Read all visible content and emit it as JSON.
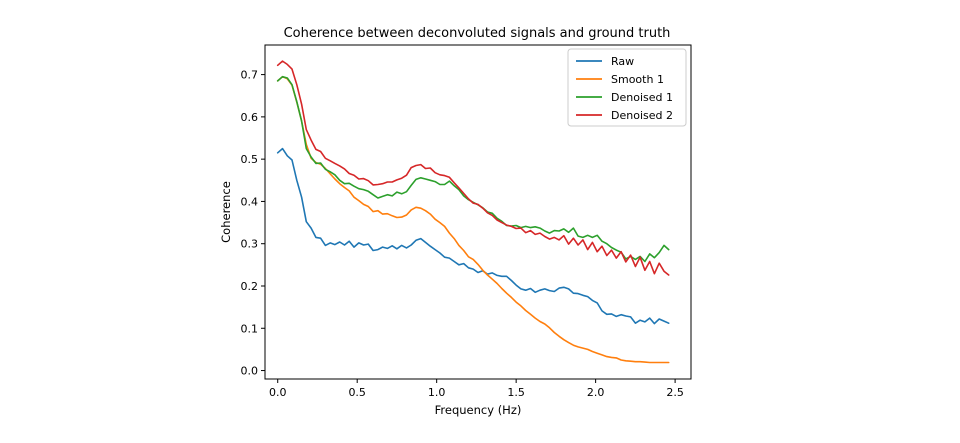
{
  "chart_data": {
    "type": "line",
    "title": "Coherence between deconvoluted signals and ground truth",
    "xlabel": "Frequency (Hz)",
    "ylabel": "Coherence",
    "xlim": [
      -0.08,
      2.6
    ],
    "ylim": [
      -0.02,
      0.77
    ],
    "xticks": [
      0.0,
      0.5,
      1.0,
      1.5,
      2.0,
      2.5
    ],
    "xtick_labels": [
      "0.0",
      "0.5",
      "1.0",
      "1.5",
      "2.0",
      "2.5"
    ],
    "yticks": [
      0.0,
      0.1,
      0.2,
      0.3,
      0.4,
      0.5,
      0.6,
      0.7
    ],
    "ytick_labels": [
      "0.0",
      "0.1",
      "0.2",
      "0.3",
      "0.4",
      "0.5",
      "0.6",
      "0.7"
    ],
    "grid": false,
    "legend_position": "upper right",
    "x": [
      0.0,
      0.03,
      0.06,
      0.09,
      0.12,
      0.15,
      0.18,
      0.21,
      0.24,
      0.27,
      0.3,
      0.33,
      0.36,
      0.39,
      0.42,
      0.45,
      0.48,
      0.51,
      0.54,
      0.57,
      0.6,
      0.63,
      0.66,
      0.69,
      0.72,
      0.75,
      0.78,
      0.81,
      0.84,
      0.87,
      0.9,
      0.93,
      0.96,
      0.99,
      1.02,
      1.05,
      1.08,
      1.11,
      1.14,
      1.17,
      1.2,
      1.23,
      1.26,
      1.29,
      1.32,
      1.35,
      1.38,
      1.41,
      1.44,
      1.47,
      1.5,
      1.53,
      1.56,
      1.59,
      1.62,
      1.65,
      1.68,
      1.71,
      1.74,
      1.77,
      1.8,
      1.83,
      1.86,
      1.89,
      1.92,
      1.95,
      1.98,
      2.01,
      2.04,
      2.07,
      2.1,
      2.13,
      2.16,
      2.19,
      2.22,
      2.25,
      2.28,
      2.31,
      2.34,
      2.37,
      2.4,
      2.43,
      2.46
    ],
    "series": [
      {
        "name": "Raw",
        "color": "#1f77b4",
        "values": [
          0.515,
          0.525,
          0.508,
          0.498,
          0.45,
          0.41,
          0.352,
          0.337,
          0.315,
          0.313,
          0.296,
          0.302,
          0.298,
          0.304,
          0.297,
          0.306,
          0.292,
          0.302,
          0.297,
          0.299,
          0.284,
          0.286,
          0.292,
          0.289,
          0.295,
          0.288,
          0.296,
          0.29,
          0.297,
          0.308,
          0.312,
          0.303,
          0.294,
          0.286,
          0.278,
          0.268,
          0.266,
          0.258,
          0.25,
          0.253,
          0.243,
          0.24,
          0.232,
          0.236,
          0.228,
          0.231,
          0.225,
          0.223,
          0.223,
          0.213,
          0.202,
          0.193,
          0.19,
          0.194,
          0.185,
          0.19,
          0.193,
          0.189,
          0.187,
          0.195,
          0.197,
          0.193,
          0.183,
          0.182,
          0.178,
          0.175,
          0.166,
          0.16,
          0.141,
          0.133,
          0.134,
          0.128,
          0.132,
          0.129,
          0.127,
          0.112,
          0.119,
          0.115,
          0.124,
          0.111,
          0.122,
          0.117,
          0.112
        ]
      },
      {
        "name": "Smooth 1",
        "color": "#ff7f0e",
        "values": [
          0.685,
          0.695,
          0.69,
          0.675,
          0.635,
          0.59,
          0.535,
          0.502,
          0.492,
          0.488,
          0.478,
          0.465,
          0.453,
          0.442,
          0.433,
          0.425,
          0.41,
          0.402,
          0.393,
          0.388,
          0.376,
          0.378,
          0.37,
          0.371,
          0.366,
          0.362,
          0.363,
          0.368,
          0.38,
          0.386,
          0.384,
          0.378,
          0.37,
          0.358,
          0.35,
          0.341,
          0.325,
          0.312,
          0.296,
          0.284,
          0.269,
          0.263,
          0.251,
          0.237,
          0.226,
          0.216,
          0.206,
          0.194,
          0.183,
          0.173,
          0.162,
          0.153,
          0.142,
          0.133,
          0.124,
          0.116,
          0.11,
          0.101,
          0.09,
          0.081,
          0.073,
          0.066,
          0.06,
          0.056,
          0.053,
          0.05,
          0.045,
          0.041,
          0.037,
          0.033,
          0.031,
          0.03,
          0.025,
          0.023,
          0.022,
          0.021,
          0.021,
          0.02,
          0.019,
          0.019,
          0.019,
          0.019,
          0.019
        ]
      },
      {
        "name": "Denoised 1",
        "color": "#2ca02c",
        "values": [
          0.685,
          0.695,
          0.692,
          0.676,
          0.636,
          0.59,
          0.525,
          0.505,
          0.49,
          0.491,
          0.476,
          0.47,
          0.463,
          0.45,
          0.442,
          0.443,
          0.436,
          0.43,
          0.428,
          0.424,
          0.416,
          0.408,
          0.412,
          0.416,
          0.413,
          0.422,
          0.418,
          0.423,
          0.438,
          0.452,
          0.456,
          0.453,
          0.45,
          0.447,
          0.44,
          0.44,
          0.448,
          0.437,
          0.428,
          0.413,
          0.404,
          0.398,
          0.392,
          0.385,
          0.375,
          0.372,
          0.36,
          0.353,
          0.343,
          0.342,
          0.343,
          0.338,
          0.341,
          0.338,
          0.34,
          0.337,
          0.33,
          0.325,
          0.331,
          0.33,
          0.335,
          0.327,
          0.337,
          0.318,
          0.315,
          0.32,
          0.315,
          0.32,
          0.306,
          0.3,
          0.291,
          0.285,
          0.28,
          0.264,
          0.27,
          0.263,
          0.27,
          0.258,
          0.276,
          0.267,
          0.279,
          0.296,
          0.286
        ]
      },
      {
        "name": "Denoised 2",
        "color": "#d62728",
        "values": [
          0.722,
          0.732,
          0.724,
          0.713,
          0.676,
          0.63,
          0.57,
          0.545,
          0.523,
          0.518,
          0.502,
          0.496,
          0.49,
          0.484,
          0.477,
          0.466,
          0.462,
          0.453,
          0.454,
          0.449,
          0.439,
          0.44,
          0.442,
          0.446,
          0.446,
          0.451,
          0.455,
          0.462,
          0.48,
          0.485,
          0.487,
          0.478,
          0.479,
          0.468,
          0.463,
          0.461,
          0.457,
          0.444,
          0.432,
          0.419,
          0.406,
          0.396,
          0.393,
          0.384,
          0.373,
          0.367,
          0.356,
          0.35,
          0.344,
          0.341,
          0.336,
          0.337,
          0.326,
          0.331,
          0.322,
          0.325,
          0.317,
          0.311,
          0.315,
          0.309,
          0.319,
          0.299,
          0.313,
          0.297,
          0.309,
          0.286,
          0.303,
          0.281,
          0.294,
          0.272,
          0.285,
          0.266,
          0.281,
          0.257,
          0.273,
          0.246,
          0.268,
          0.237,
          0.258,
          0.229,
          0.254,
          0.235,
          0.226
        ]
      }
    ]
  }
}
